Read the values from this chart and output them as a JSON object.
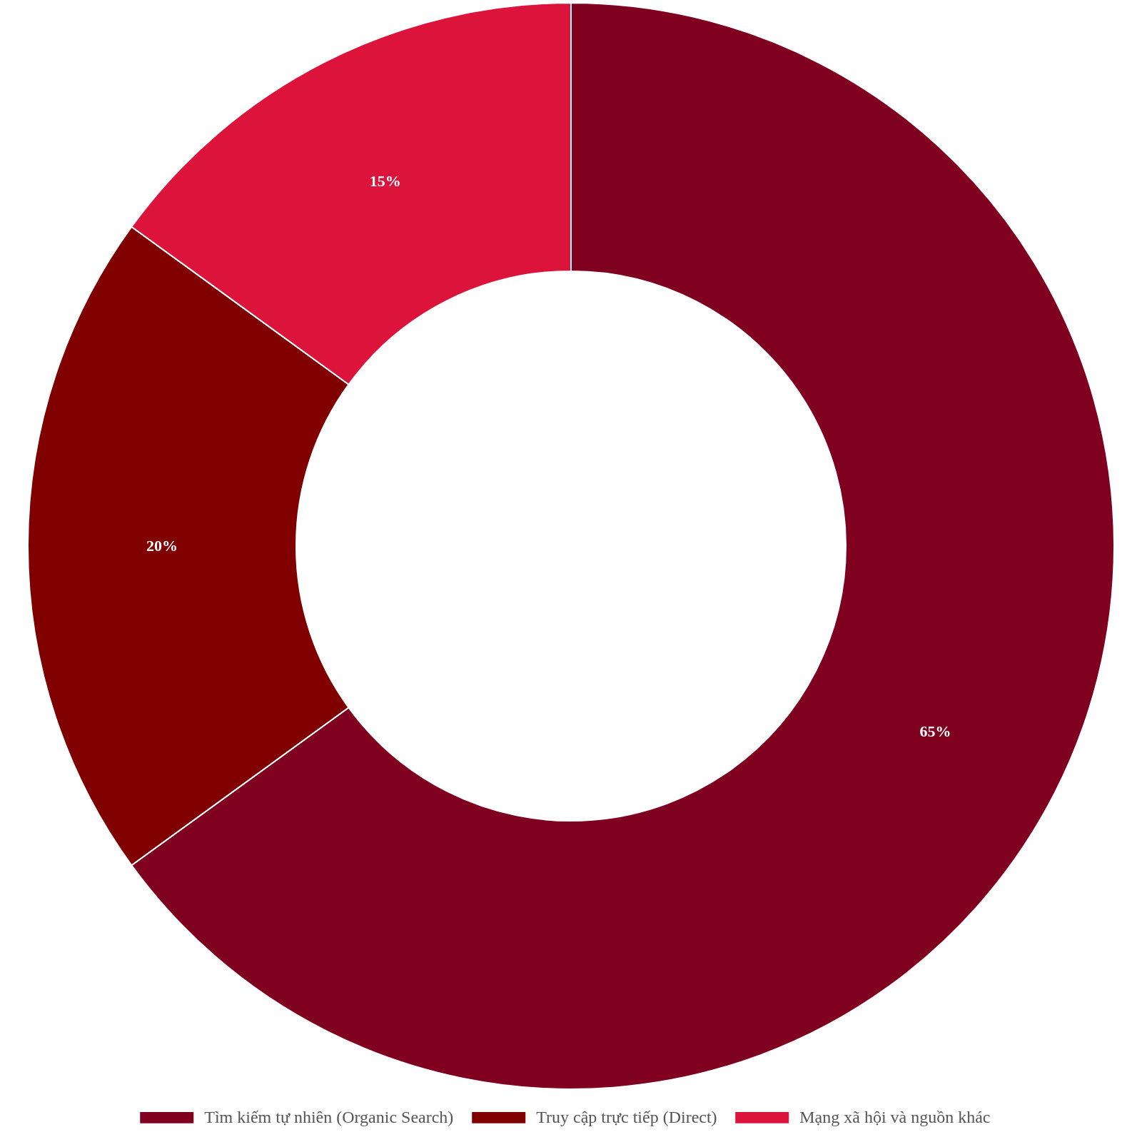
{
  "chart_data": {
    "type": "donut",
    "categories": [
      "Tìm kiếm tự nhiên (Organic Search)",
      "Truy cập trực tiếp (Direct)",
      "Mạng xã hội và nguồn khác"
    ],
    "values": [
      65,
      20,
      15
    ],
    "colors": [
      "#800020",
      "#800000",
      "#dc143c"
    ],
    "value_labels": [
      "65%",
      "20%",
      "15%"
    ],
    "legend": "bottom"
  }
}
